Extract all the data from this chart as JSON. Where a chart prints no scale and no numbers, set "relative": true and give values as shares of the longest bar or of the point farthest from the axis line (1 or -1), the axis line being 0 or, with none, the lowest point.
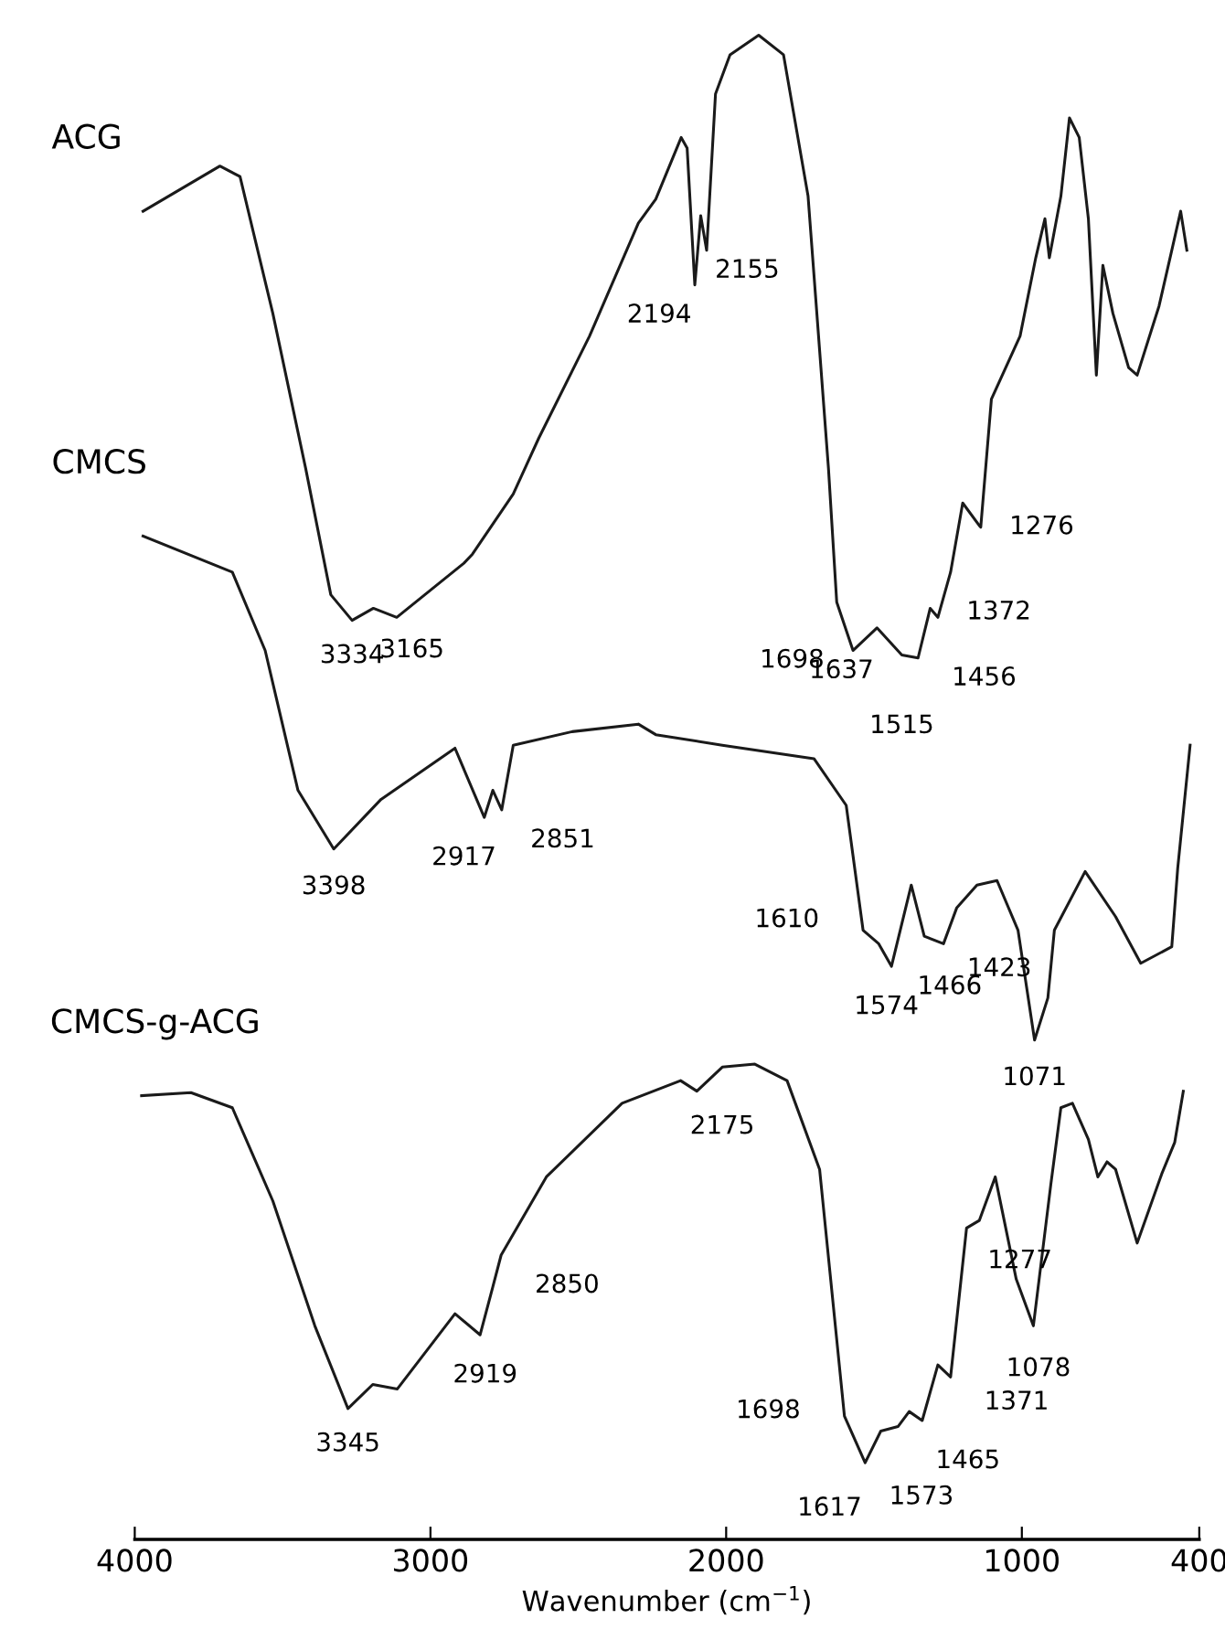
{
  "chart_data": {
    "type": "line",
    "relative": true,
    "xlabel": "Wavenumber (cm$^{−1}$)",
    "xlim": [
      4000,
      400
    ],
    "xticks": [
      4000,
      3000,
      2000,
      1000,
      400
    ],
    "marker": "none",
    "line_style": "solid",
    "series": [
      {
        "name": "ACG",
        "color": "#1a1a1a",
        "x": [
          3972,
          3712,
          3644,
          3533,
          3422,
          3337,
          3265,
          3193,
          3114,
          2887,
          2858,
          2720,
          2634,
          2462,
          2297,
          2238,
          2152,
          2132,
          2106,
          2086,
          2066,
          2036,
          1987,
          1890,
          1806,
          1723,
          1654,
          1626,
          1571,
          1490,
          1406,
          1351,
          1310,
          1284,
          1241,
          1200,
          1144,
          1139,
          1103,
          1006,
          953,
          922,
          907,
          868,
          839,
          806,
          775,
          748,
          726,
          692,
          639,
          610,
          536,
          493,
          463,
          442
        ],
        "values": [
          0.883,
          0.913,
          0.906,
          0.815,
          0.712,
          0.628,
          0.611,
          0.619,
          0.613,
          0.649,
          0.655,
          0.695,
          0.732,
          0.8,
          0.875,
          0.891,
          0.932,
          0.925,
          0.834,
          0.88,
          0.857,
          0.961,
          0.987,
          1.0,
          0.987,
          0.893,
          0.712,
          0.623,
          0.591,
          0.606,
          0.588,
          0.586,
          0.619,
          0.613,
          0.643,
          0.689,
          0.674,
          0.673,
          0.758,
          0.8,
          0.852,
          0.878,
          0.852,
          0.893,
          0.945,
          0.932,
          0.878,
          0.774,
          0.847,
          0.815,
          0.779,
          0.774,
          0.82,
          0.857,
          0.883,
          0.857
        ]
      },
      {
        "name": "CMCS",
        "color": "#1a1a1a",
        "x": [
          3972,
          3670,
          3559,
          3448,
          3327,
          3167,
          2917,
          2818,
          2789,
          2759,
          2720,
          2521,
          2297,
          2238,
          2013,
          1703,
          1594,
          1537,
          1484,
          1441,
          1374,
          1330,
          1265,
          1220,
          1152,
          1084,
          1013,
          957,
          912,
          890,
          786,
          683,
          598,
          493,
          473,
          431
        ],
        "values": [
          0.667,
          0.643,
          0.591,
          0.498,
          0.459,
          0.492,
          0.526,
          0.48,
          0.498,
          0.485,
          0.528,
          0.537,
          0.542,
          0.535,
          0.528,
          0.519,
          0.488,
          0.405,
          0.396,
          0.381,
          0.435,
          0.401,
          0.396,
          0.42,
          0.435,
          0.438,
          0.405,
          0.332,
          0.36,
          0.405,
          0.444,
          0.414,
          0.383,
          0.394,
          0.446,
          0.528
        ]
      },
      {
        "name": "CMCS-g-ACG",
        "color": "#1a1a1a",
        "x": [
          3977,
          3810,
          3670,
          3533,
          3391,
          3279,
          3195,
          3112,
          2917,
          2832,
          2789,
          2761,
          2608,
          2352,
          2154,
          2099,
          2013,
          1903,
          1794,
          1684,
          1600,
          1530,
          1477,
          1419,
          1381,
          1337,
          1284,
          1241,
          1187,
          1144,
          1090,
          1019,
          961,
          902,
          868,
          829,
          775,
          743,
          712,
          683,
          610,
          527,
          483,
          454
        ],
        "values": [
          0.295,
          0.297,
          0.287,
          0.225,
          0.142,
          0.087,
          0.103,
          0.1,
          0.15,
          0.136,
          0.168,
          0.189,
          0.241,
          0.29,
          0.305,
          0.298,
          0.314,
          0.316,
          0.305,
          0.246,
          0.082,
          0.051,
          0.072,
          0.075,
          0.085,
          0.079,
          0.116,
          0.108,
          0.207,
          0.212,
          0.241,
          0.173,
          0.142,
          0.236,
          0.287,
          0.29,
          0.266,
          0.241,
          0.251,
          0.246,
          0.197,
          0.243,
          0.264,
          0.298
        ]
      }
    ],
    "annotations": [
      {
        "text": "2194",
        "x": 2106,
        "y": 0.834
      },
      {
        "text": "2155",
        "x": 2066,
        "y": 0.857
      },
      {
        "text": "3334",
        "x": 3265,
        "y": 0.611
      },
      {
        "text": "3165",
        "x": 3114,
        "y": 0.613
      },
      {
        "text": "1276",
        "x": 1139,
        "y": 0.673
      },
      {
        "text": "1372",
        "x": 1284,
        "y": 0.613
      },
      {
        "text": "1698",
        "x": 1571,
        "y": 0.591
      },
      {
        "text": "1637",
        "x": 1490,
        "y": 0.606
      },
      {
        "text": "1515",
        "x": 1406,
        "y": 0.588
      },
      {
        "text": "1456",
        "x": 1351,
        "y": 0.586
      },
      {
        "text": "3398",
        "x": 3327,
        "y": 0.459
      },
      {
        "text": "2917",
        "x": 2818,
        "y": 0.48
      },
      {
        "text": "2851",
        "x": 2759,
        "y": 0.485
      },
      {
        "text": "1610",
        "x": 1537,
        "y": 0.405
      },
      {
        "text": "1574",
        "x": 1441,
        "y": 0.381
      },
      {
        "text": "1466",
        "x": 1330,
        "y": 0.401
      },
      {
        "text": "1423",
        "x": 1265,
        "y": 0.396
      },
      {
        "text": "1071",
        "x": 957,
        "y": 0.332
      },
      {
        "text": "2175",
        "x": 2099,
        "y": 0.298
      },
      {
        "text": "2850",
        "x": 2761,
        "y": 0.189
      },
      {
        "text": "2919",
        "x": 2832,
        "y": 0.136
      },
      {
        "text": "3345",
        "x": 3279,
        "y": 0.087
      },
      {
        "text": "1277",
        "x": 1144,
        "y": 0.212
      },
      {
        "text": "1078",
        "x": 961,
        "y": 0.142
      },
      {
        "text": "1371",
        "x": 1241,
        "y": 0.108
      },
      {
        "text": "1698",
        "x": 1600,
        "y": 0.082
      },
      {
        "text": "1465",
        "x": 1337,
        "y": 0.079
      },
      {
        "text": "1617",
        "x": 1530,
        "y": 0.051
      },
      {
        "text": "1573",
        "x": 1477,
        "y": 0.072
      }
    ]
  }
}
